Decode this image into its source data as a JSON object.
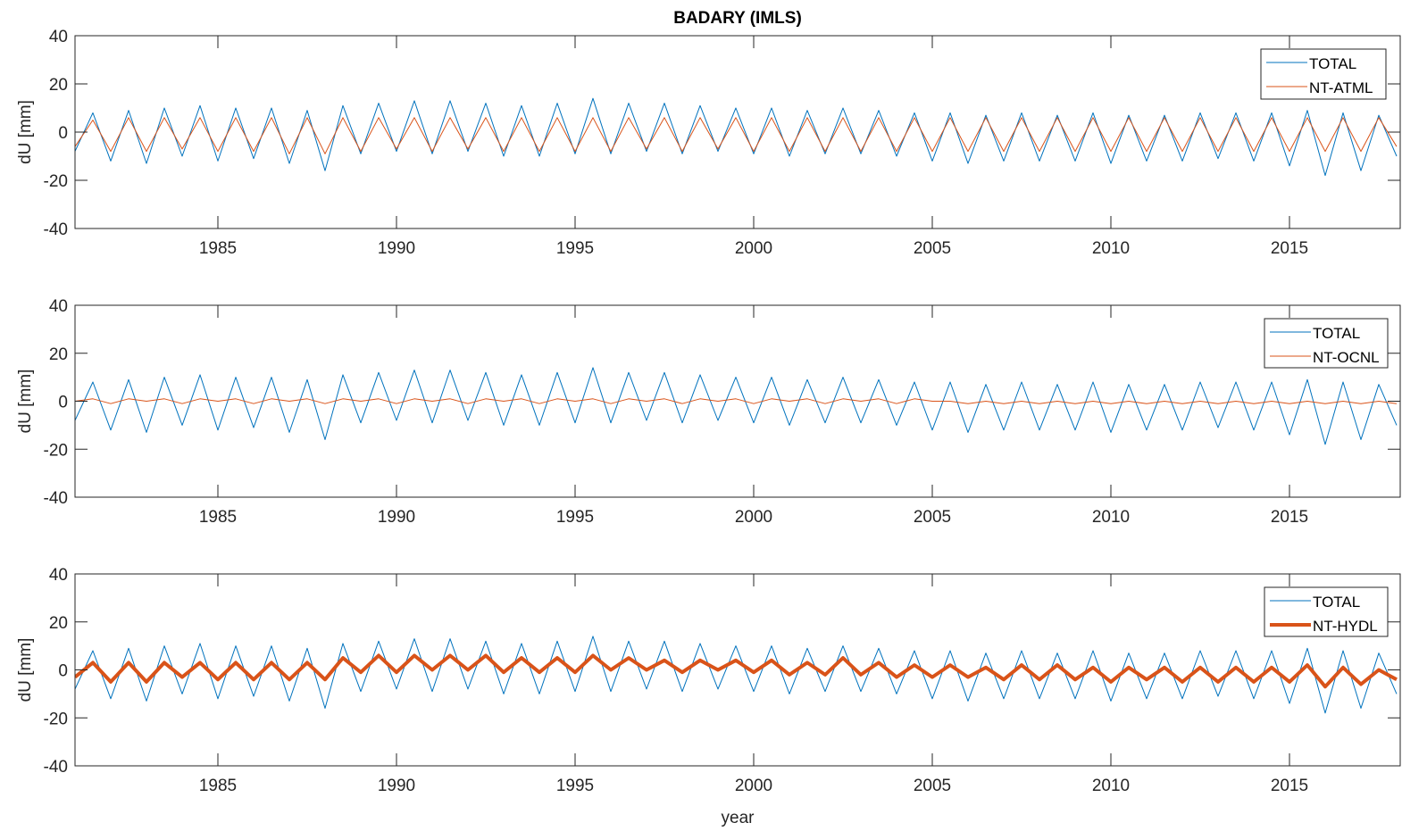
{
  "figure": {
    "title": "BADARY (IMLS)",
    "xlabel": "year"
  },
  "chart_data": [
    {
      "type": "line",
      "title": "BADARY (IMLS)",
      "xlabel": "",
      "ylabel": "dU [mm]",
      "xlim": [
        1981.0,
        2018.1
      ],
      "ylim": [
        -40,
        40
      ],
      "xticks": [
        1985,
        1990,
        1995,
        2000,
        2005,
        2010,
        2015
      ],
      "yticks": [
        -40,
        -20,
        0,
        20,
        40
      ],
      "xticklabels": [
        "1985",
        "1990",
        "1995",
        "2000",
        "2005",
        "2010",
        "2015"
      ],
      "yticklabels": [
        "-40",
        "-20",
        "0",
        "20",
        "40"
      ],
      "legend_position": "top-right",
      "grid": false,
      "series": [
        {
          "name": "TOTAL",
          "color": "#0072BD",
          "linewidth": 1.0,
          "x": [
            1981.0,
            1981.5,
            1982.0,
            1982.5,
            1983.0,
            1983.5,
            1984.0,
            1984.5,
            1985.0,
            1985.5,
            1986.0,
            1986.5,
            1987.0,
            1987.5,
            1988.0,
            1988.5,
            1989.0,
            1989.5,
            1990.0,
            1990.5,
            1991.0,
            1991.5,
            1992.0,
            1992.5,
            1993.0,
            1993.5,
            1994.0,
            1994.5,
            1995.0,
            1995.5,
            1996.0,
            1996.5,
            1997.0,
            1997.5,
            1998.0,
            1998.5,
            1999.0,
            1999.5,
            2000.0,
            2000.5,
            2001.0,
            2001.5,
            2002.0,
            2002.5,
            2003.0,
            2003.5,
            2004.0,
            2004.5,
            2005.0,
            2005.5,
            2006.0,
            2006.5,
            2007.0,
            2007.5,
            2008.0,
            2008.5,
            2009.0,
            2009.5,
            2010.0,
            2010.5,
            2011.0,
            2011.5,
            2012.0,
            2012.5,
            2013.0,
            2013.5,
            2014.0,
            2014.5,
            2015.0,
            2015.5,
            2016.0,
            2016.5,
            2017.0,
            2017.5,
            2018.0
          ],
          "y": [
            -8,
            8,
            -12,
            9,
            -13,
            10,
            -10,
            11,
            -12,
            10,
            -11,
            10,
            -13,
            9,
            -16,
            11,
            -9,
            12,
            -8,
            13,
            -9,
            13,
            -8,
            12,
            -10,
            11,
            -10,
            12,
            -9,
            14,
            -9,
            12,
            -8,
            12,
            -9,
            11,
            -8,
            10,
            -9,
            10,
            -10,
            9,
            -9,
            10,
            -9,
            9,
            -10,
            8,
            -12,
            8,
            -13,
            7,
            -12,
            8,
            -12,
            7,
            -12,
            8,
            -13,
            7,
            -12,
            7,
            -12,
            8,
            -11,
            8,
            -12,
            8,
            -14,
            9,
            -18,
            8,
            -16,
            7,
            -10
          ]
        },
        {
          "name": "NT-ATML",
          "color": "#D95319",
          "linewidth": 1.0,
          "x": [
            1981.0,
            1981.5,
            1982.0,
            1982.5,
            1983.0,
            1983.5,
            1984.0,
            1984.5,
            1985.0,
            1985.5,
            1986.0,
            1986.5,
            1987.0,
            1987.5,
            1988.0,
            1988.5,
            1989.0,
            1989.5,
            1990.0,
            1990.5,
            1991.0,
            1991.5,
            1992.0,
            1992.5,
            1993.0,
            1993.5,
            1994.0,
            1994.5,
            1995.0,
            1995.5,
            1996.0,
            1996.5,
            1997.0,
            1997.5,
            1998.0,
            1998.5,
            1999.0,
            1999.5,
            2000.0,
            2000.5,
            2001.0,
            2001.5,
            2002.0,
            2002.5,
            2003.0,
            2003.5,
            2004.0,
            2004.5,
            2005.0,
            2005.5,
            2006.0,
            2006.5,
            2007.0,
            2007.5,
            2008.0,
            2008.5,
            2009.0,
            2009.5,
            2010.0,
            2010.5,
            2011.0,
            2011.5,
            2012.0,
            2012.5,
            2013.0,
            2013.5,
            2014.0,
            2014.5,
            2015.0,
            2015.5,
            2016.0,
            2016.5,
            2017.0,
            2017.5,
            2018.0
          ],
          "y": [
            -6,
            5,
            -8,
            6,
            -8,
            6,
            -7,
            6,
            -8,
            6,
            -8,
            6,
            -9,
            6,
            -9,
            6,
            -8,
            6,
            -7,
            6,
            -8,
            6,
            -7,
            6,
            -8,
            6,
            -8,
            6,
            -8,
            6,
            -8,
            6,
            -7,
            6,
            -8,
            6,
            -7,
            6,
            -8,
            6,
            -8,
            6,
            -8,
            6,
            -8,
            6,
            -8,
            6,
            -8,
            6,
            -8,
            6,
            -8,
            6,
            -8,
            6,
            -8,
            6,
            -8,
            6,
            -8,
            6,
            -8,
            6,
            -8,
            6,
            -8,
            6,
            -8,
            6,
            -8,
            6,
            -8,
            6,
            -6
          ]
        }
      ]
    },
    {
      "type": "line",
      "title": "",
      "xlabel": "",
      "ylabel": "dU [mm]",
      "xlim": [
        1981.0,
        2018.1
      ],
      "ylim": [
        -40,
        40
      ],
      "xticks": [
        1985,
        1990,
        1995,
        2000,
        2005,
        2010,
        2015
      ],
      "yticks": [
        -40,
        -20,
        0,
        20,
        40
      ],
      "xticklabels": [
        "1985",
        "1990",
        "1995",
        "2000",
        "2005",
        "2010",
        "2015"
      ],
      "yticklabels": [
        "-40",
        "-20",
        "0",
        "20",
        "40"
      ],
      "legend_position": "top-right",
      "grid": false,
      "series": [
        {
          "name": "TOTAL",
          "color": "#0072BD",
          "linewidth": 1.0,
          "x": [
            1981.0,
            1981.5,
            1982.0,
            1982.5,
            1983.0,
            1983.5,
            1984.0,
            1984.5,
            1985.0,
            1985.5,
            1986.0,
            1986.5,
            1987.0,
            1987.5,
            1988.0,
            1988.5,
            1989.0,
            1989.5,
            1990.0,
            1990.5,
            1991.0,
            1991.5,
            1992.0,
            1992.5,
            1993.0,
            1993.5,
            1994.0,
            1994.5,
            1995.0,
            1995.5,
            1996.0,
            1996.5,
            1997.0,
            1997.5,
            1998.0,
            1998.5,
            1999.0,
            1999.5,
            2000.0,
            2000.5,
            2001.0,
            2001.5,
            2002.0,
            2002.5,
            2003.0,
            2003.5,
            2004.0,
            2004.5,
            2005.0,
            2005.5,
            2006.0,
            2006.5,
            2007.0,
            2007.5,
            2008.0,
            2008.5,
            2009.0,
            2009.5,
            2010.0,
            2010.5,
            2011.0,
            2011.5,
            2012.0,
            2012.5,
            2013.0,
            2013.5,
            2014.0,
            2014.5,
            2015.0,
            2015.5,
            2016.0,
            2016.5,
            2017.0,
            2017.5,
            2018.0
          ],
          "y": [
            -8,
            8,
            -12,
            9,
            -13,
            10,
            -10,
            11,
            -12,
            10,
            -11,
            10,
            -13,
            9,
            -16,
            11,
            -9,
            12,
            -8,
            13,
            -9,
            13,
            -8,
            12,
            -10,
            11,
            -10,
            12,
            -9,
            14,
            -9,
            12,
            -8,
            12,
            -9,
            11,
            -8,
            10,
            -9,
            10,
            -10,
            9,
            -9,
            10,
            -9,
            9,
            -10,
            8,
            -12,
            8,
            -13,
            7,
            -12,
            8,
            -12,
            7,
            -12,
            8,
            -13,
            7,
            -12,
            7,
            -12,
            8,
            -11,
            8,
            -12,
            8,
            -14,
            9,
            -18,
            8,
            -16,
            7,
            -10
          ]
        },
        {
          "name": "NT-OCNL",
          "color": "#D95319",
          "linewidth": 1.0,
          "x": [
            1981.0,
            1981.5,
            1982.0,
            1982.5,
            1983.0,
            1983.5,
            1984.0,
            1984.5,
            1985.0,
            1985.5,
            1986.0,
            1986.5,
            1987.0,
            1987.5,
            1988.0,
            1988.5,
            1989.0,
            1989.5,
            1990.0,
            1990.5,
            1991.0,
            1991.5,
            1992.0,
            1992.5,
            1993.0,
            1993.5,
            1994.0,
            1994.5,
            1995.0,
            1995.5,
            1996.0,
            1996.5,
            1997.0,
            1997.5,
            1998.0,
            1998.5,
            1999.0,
            1999.5,
            2000.0,
            2000.5,
            2001.0,
            2001.5,
            2002.0,
            2002.5,
            2003.0,
            2003.5,
            2004.0,
            2004.5,
            2005.0,
            2005.5,
            2006.0,
            2006.5,
            2007.0,
            2007.5,
            2008.0,
            2008.5,
            2009.0,
            2009.5,
            2010.0,
            2010.5,
            2011.0,
            2011.5,
            2012.0,
            2012.5,
            2013.0,
            2013.5,
            2014.0,
            2014.5,
            2015.0,
            2015.5,
            2016.0,
            2016.5,
            2017.0,
            2017.5,
            2018.0
          ],
          "y": [
            0,
            1,
            -1,
            1,
            0,
            1,
            -1,
            1,
            0,
            1,
            -1,
            1,
            0,
            1,
            -1,
            1,
            0,
            1,
            -1,
            1,
            0,
            1,
            -1,
            1,
            0,
            1,
            -1,
            1,
            0,
            1,
            -1,
            1,
            0,
            1,
            -1,
            1,
            0,
            1,
            -1,
            1,
            0,
            1,
            -1,
            1,
            0,
            1,
            -1,
            1,
            0,
            0,
            -1,
            0,
            -1,
            0,
            -1,
            0,
            -1,
            0,
            -1,
            0,
            -1,
            0,
            -1,
            0,
            -1,
            0,
            -1,
            0,
            -1,
            0,
            -1,
            0,
            -1,
            0,
            -1
          ]
        }
      ]
    },
    {
      "type": "line",
      "title": "",
      "xlabel": "year",
      "ylabel": "dU [mm]",
      "xlim": [
        1981.0,
        2018.1
      ],
      "ylim": [
        -40,
        40
      ],
      "xticks": [
        1985,
        1990,
        1995,
        2000,
        2005,
        2010,
        2015
      ],
      "yticks": [
        -40,
        -20,
        0,
        20,
        40
      ],
      "xticklabels": [
        "1985",
        "1990",
        "1995",
        "2000",
        "2005",
        "2010",
        "2015"
      ],
      "yticklabels": [
        "-40",
        "-20",
        "0",
        "20",
        "40"
      ],
      "legend_position": "top-right",
      "grid": false,
      "series": [
        {
          "name": "TOTAL",
          "color": "#0072BD",
          "linewidth": 1.0,
          "x": [
            1981.0,
            1981.5,
            1982.0,
            1982.5,
            1983.0,
            1983.5,
            1984.0,
            1984.5,
            1985.0,
            1985.5,
            1986.0,
            1986.5,
            1987.0,
            1987.5,
            1988.0,
            1988.5,
            1989.0,
            1989.5,
            1990.0,
            1990.5,
            1991.0,
            1991.5,
            1992.0,
            1992.5,
            1993.0,
            1993.5,
            1994.0,
            1994.5,
            1995.0,
            1995.5,
            1996.0,
            1996.5,
            1997.0,
            1997.5,
            1998.0,
            1998.5,
            1999.0,
            1999.5,
            2000.0,
            2000.5,
            2001.0,
            2001.5,
            2002.0,
            2002.5,
            2003.0,
            2003.5,
            2004.0,
            2004.5,
            2005.0,
            2005.5,
            2006.0,
            2006.5,
            2007.0,
            2007.5,
            2008.0,
            2008.5,
            2009.0,
            2009.5,
            2010.0,
            2010.5,
            2011.0,
            2011.5,
            2012.0,
            2012.5,
            2013.0,
            2013.5,
            2014.0,
            2014.5,
            2015.0,
            2015.5,
            2016.0,
            2016.5,
            2017.0,
            2017.5,
            2018.0
          ],
          "y": [
            -8,
            8,
            -12,
            9,
            -13,
            10,
            -10,
            11,
            -12,
            10,
            -11,
            10,
            -13,
            9,
            -16,
            11,
            -9,
            12,
            -8,
            13,
            -9,
            13,
            -8,
            12,
            -10,
            11,
            -10,
            12,
            -9,
            14,
            -9,
            12,
            -8,
            12,
            -9,
            11,
            -8,
            10,
            -9,
            10,
            -10,
            9,
            -9,
            10,
            -9,
            9,
            -10,
            8,
            -12,
            8,
            -13,
            7,
            -12,
            8,
            -12,
            7,
            -12,
            8,
            -13,
            7,
            -12,
            7,
            -12,
            8,
            -11,
            8,
            -12,
            8,
            -14,
            9,
            -18,
            8,
            -16,
            7,
            -10
          ]
        },
        {
          "name": "NT-HYDL",
          "color": "#D95319",
          "linewidth": 4.0,
          "x": [
            1981.0,
            1981.5,
            1982.0,
            1982.5,
            1983.0,
            1983.5,
            1984.0,
            1984.5,
            1985.0,
            1985.5,
            1986.0,
            1986.5,
            1987.0,
            1987.5,
            1988.0,
            1988.5,
            1989.0,
            1989.5,
            1990.0,
            1990.5,
            1991.0,
            1991.5,
            1992.0,
            1992.5,
            1993.0,
            1993.5,
            1994.0,
            1994.5,
            1995.0,
            1995.5,
            1996.0,
            1996.5,
            1997.0,
            1997.5,
            1998.0,
            1998.5,
            1999.0,
            1999.5,
            2000.0,
            2000.5,
            2001.0,
            2001.5,
            2002.0,
            2002.5,
            2003.0,
            2003.5,
            2004.0,
            2004.5,
            2005.0,
            2005.5,
            2006.0,
            2006.5,
            2007.0,
            2007.5,
            2008.0,
            2008.5,
            2009.0,
            2009.5,
            2010.0,
            2010.5,
            2011.0,
            2011.5,
            2012.0,
            2012.5,
            2013.0,
            2013.5,
            2014.0,
            2014.5,
            2015.0,
            2015.5,
            2016.0,
            2016.5,
            2017.0,
            2017.5,
            2018.0
          ],
          "y": [
            -3,
            3,
            -5,
            3,
            -5,
            3,
            -3,
            3,
            -4,
            3,
            -4,
            3,
            -4,
            3,
            -4,
            5,
            -1,
            6,
            -1,
            6,
            0,
            6,
            0,
            6,
            -1,
            5,
            -1,
            5,
            -1,
            6,
            0,
            5,
            0,
            4,
            -1,
            4,
            0,
            4,
            -1,
            4,
            -2,
            3,
            -2,
            5,
            -2,
            3,
            -3,
            2,
            -3,
            2,
            -3,
            1,
            -4,
            2,
            -4,
            2,
            -4,
            1,
            -5,
            1,
            -4,
            1,
            -5,
            1,
            -5,
            1,
            -5,
            1,
            -5,
            2,
            -7,
            1,
            -6,
            0,
            -4
          ]
        }
      ]
    }
  ]
}
